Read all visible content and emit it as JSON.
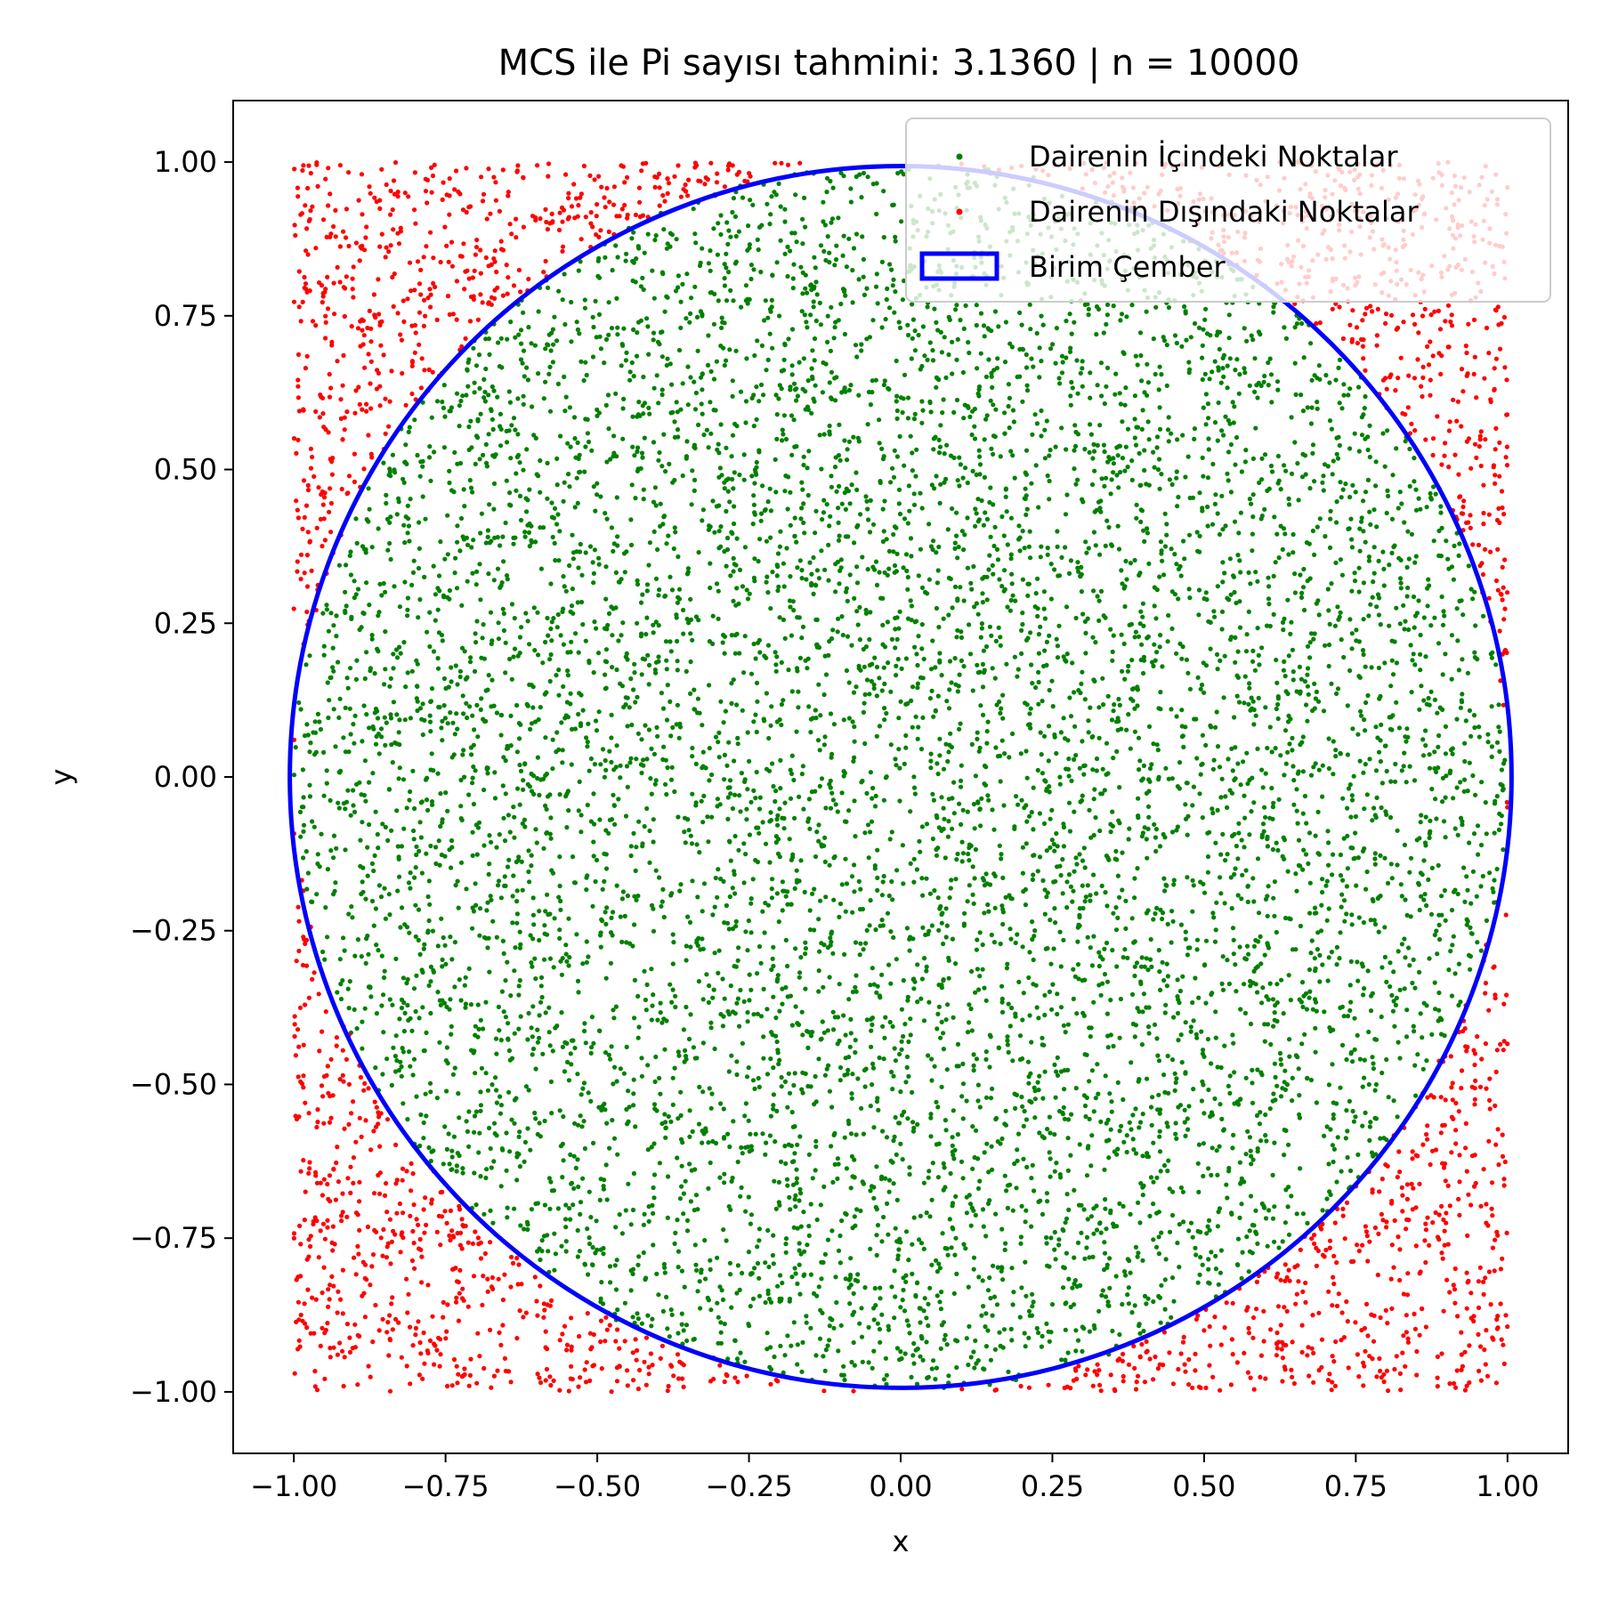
{
  "chart_data": {
    "type": "scatter",
    "title": "MCS ile Pi sayısı tahmini: 3.1360 | n = 10000",
    "xlabel": "x",
    "ylabel": "y",
    "xlim": [
      -1.1,
      1.1
    ],
    "ylim": [
      -1.1,
      1.1
    ],
    "x_ticks": [
      -1.0,
      -0.75,
      -0.5,
      -0.25,
      0.0,
      0.25,
      0.5,
      0.75,
      1.0
    ],
    "y_ticks": [
      -1.0,
      -0.75,
      -0.5,
      -0.25,
      0.0,
      0.25,
      0.5,
      0.75,
      1.0
    ],
    "x_tick_labels": [
      "−1.00",
      "−0.75",
      "−0.50",
      "−0.25",
      "0.00",
      "0.25",
      "0.50",
      "0.75",
      "1.00"
    ],
    "y_tick_labels": [
      "−1.00",
      "−0.75",
      "−0.50",
      "−0.25",
      "0.00",
      "0.25",
      "0.50",
      "0.75",
      "1.00"
    ],
    "grid": false,
    "legend_position": "top-right",
    "n_points": 10000,
    "pi_estimate": 3.136,
    "sampling_range": [
      -1.0,
      1.0
    ],
    "series": [
      {
        "name": "Dairenin İçindeki Noktalar",
        "color": "#008000",
        "marker": "point",
        "condition": "x^2 + y^2 <= 1"
      },
      {
        "name": "Dairenin Dışındaki Noktalar",
        "color": "#ff0000",
        "marker": "point",
        "condition": "x^2 + y^2 > 1"
      }
    ],
    "circle": {
      "name": "Birim Çember",
      "center": [
        0,
        0
      ],
      "radius": 1,
      "color": "#0000ff"
    }
  }
}
